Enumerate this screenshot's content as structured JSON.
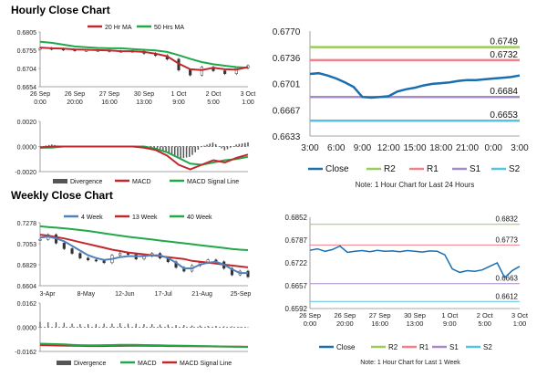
{
  "hourly_title": "Hourly Close Chart",
  "weekly_title": "Weekly Close Chart",
  "chart_data": [
    {
      "id": "hourly_price",
      "type": "line",
      "ylim": [
        0.6654,
        0.6805
      ],
      "y_ticks": [
        "0.6805",
        "0.6755",
        "0.6704",
        "0.6654"
      ],
      "x_ticks": [
        [
          "26 Sep",
          "0:00"
        ],
        [
          "26 Sep",
          "20:00"
        ],
        [
          "27 Sep",
          "16:00"
        ],
        [
          "30 Sep",
          "13:00"
        ],
        [
          "1 Oct",
          "9:00"
        ],
        [
          "2 Oct",
          "5:00"
        ],
        [
          "3 Oct",
          "1:00"
        ]
      ],
      "legend": [
        "20 Hr MA",
        "50 Hrs MA"
      ],
      "colors": {
        "ma20": "#c0282d",
        "ma50": "#22a84a",
        "candle": "#333333"
      },
      "x": [
        0,
        10,
        20,
        30,
        40,
        50,
        60,
        70,
        80,
        90,
        100,
        110,
        120,
        130,
        140,
        150,
        160,
        170,
        180
      ],
      "series": [
        {
          "name": "20 Hr MA",
          "values": [
            0.6762,
            0.676,
            0.6759,
            0.6757,
            0.6756,
            0.6755,
            0.6754,
            0.6752,
            0.6752,
            0.675,
            0.6745,
            0.6738,
            0.6718,
            0.6702,
            0.67,
            0.6706,
            0.6702,
            0.6701,
            0.6708
          ]
        },
        {
          "name": "50 Hrs MA",
          "values": [
            0.6778,
            0.6775,
            0.677,
            0.6765,
            0.6763,
            0.6761,
            0.676,
            0.676,
            0.6758,
            0.6756,
            0.6754,
            0.675,
            0.6741,
            0.6731,
            0.6722,
            0.6716,
            0.6712,
            0.6708,
            0.6706
          ]
        }
      ],
      "close": [
        0.676,
        0.6758,
        0.6756,
        0.6754,
        0.6754,
        0.6754,
        0.6752,
        0.6752,
        0.6752,
        0.6746,
        0.674,
        0.673,
        0.67,
        0.6686,
        0.6708,
        0.6698,
        0.669,
        0.6706,
        0.6712
      ]
    },
    {
      "id": "hourly_macd",
      "type": "line",
      "ylim": [
        -0.0022,
        0.0022
      ],
      "y_ticks": [
        "0.0020",
        "0.0000",
        "-0.0020"
      ],
      "legend": [
        "Divergence",
        "MACD",
        "MACD Signal Line"
      ],
      "colors": {
        "divergence": "#555555",
        "macd": "#c0282d",
        "signal": "#22a84a"
      },
      "x": [
        0,
        10,
        20,
        30,
        40,
        50,
        60,
        70,
        80,
        90,
        100,
        110,
        120,
        130,
        140,
        150,
        160,
        170,
        180
      ],
      "series": [
        {
          "name": "MACD",
          "values": [
            -0.0001,
            0.0,
            0.0,
            0.0,
            0.0,
            0.0,
            0.0,
            0.0,
            0.0,
            -0.0001,
            -0.0003,
            -0.0008,
            -0.0016,
            -0.002,
            -0.0016,
            -0.0012,
            -0.0014,
            -0.001,
            -0.0007
          ]
        },
        {
          "name": "MACD Signal Line",
          "values": [
            -0.0001,
            -0.0001,
            0.0,
            0.0,
            0.0,
            0.0,
            0.0,
            0.0,
            0.0,
            0.0,
            -0.0002,
            -0.0005,
            -0.001,
            -0.0015,
            -0.0016,
            -0.0014,
            -0.0012,
            -0.0011,
            -0.0009
          ]
        }
      ]
    },
    {
      "id": "hourly_24h",
      "type": "line",
      "ylim": [
        0.6633,
        0.677
      ],
      "y_ticks": [
        "0.6770",
        "0.6736",
        "0.6701",
        "0.6667",
        "0.6633"
      ],
      "x_ticks": [
        "3:00",
        "6:00",
        "9:00",
        "12:00",
        "15:00",
        "18:00",
        "21:00",
        "0:00",
        "3:00"
      ],
      "legend": [
        "Close",
        "R2",
        "R1",
        "S1",
        "S2"
      ],
      "colors": {
        "close": "#1a6fb0",
        "r2": "#9acc5a",
        "r1": "#f0808a",
        "s1": "#a58ac8",
        "s2": "#55c4e0"
      },
      "levels": {
        "R2": 0.6749,
        "R1": 0.6732,
        "S1": 0.6684,
        "S2": 0.6653
      },
      "level_labels": [
        "0.6749",
        "0.6732",
        "0.6684",
        "0.6653"
      ],
      "x": [
        0,
        1,
        2,
        3,
        4,
        5,
        6,
        7,
        8,
        9,
        10,
        11,
        12,
        13,
        14,
        15,
        16,
        17,
        18,
        19,
        20,
        21,
        22,
        23,
        24
      ],
      "close": [
        0.6714,
        0.6715,
        0.6712,
        0.6708,
        0.6703,
        0.6697,
        0.6684,
        0.6683,
        0.6684,
        0.6685,
        0.6691,
        0.6694,
        0.6696,
        0.6699,
        0.6701,
        0.6702,
        0.6703,
        0.6705,
        0.6706,
        0.6706,
        0.6707,
        0.6708,
        0.6709,
        0.671,
        0.6712
      ],
      "note": "Note: 1 Hour Chart for Last 24 Hours"
    },
    {
      "id": "weekly_price",
      "type": "line",
      "ylim": [
        0.6604,
        0.7278
      ],
      "y_ticks": [
        "0.7278",
        "0.7053",
        "0.6829",
        "0.6604"
      ],
      "x_ticks": [
        "3-Apr",
        "8-May",
        "12-Jun",
        "17-Jul",
        "21-Aug",
        "25-Sep"
      ],
      "legend": [
        "4 Week",
        "13 Week",
        "40 Week"
      ],
      "colors": {
        "w4": "#4f81bd",
        "w13": "#c0282d",
        "w40": "#22a84a",
        "candle": "#333333"
      },
      "x": [
        0,
        1,
        2,
        3,
        4,
        5,
        6,
        7,
        8,
        9,
        10,
        11,
        12,
        13,
        14,
        15,
        16,
        17,
        18,
        19,
        20,
        21,
        22,
        23,
        24,
        25,
        26
      ],
      "series": [
        {
          "name": "4 Week",
          "values": [
            0.712,
            0.713,
            0.711,
            0.708,
            0.703,
            0.698,
            0.693,
            0.69,
            0.688,
            0.689,
            0.691,
            0.692,
            0.692,
            0.692,
            0.693,
            0.693,
            0.69,
            0.685,
            0.679,
            0.679,
            0.683,
            0.685,
            0.686,
            0.683,
            0.678,
            0.674,
            0.674
          ]
        },
        {
          "name": "13 Week",
          "values": [
            0.715,
            0.714,
            0.7125,
            0.711,
            0.709,
            0.707,
            0.705,
            0.703,
            0.701,
            0.699,
            0.6975,
            0.696,
            0.695,
            0.694,
            0.693,
            0.692,
            0.691,
            0.69,
            0.689,
            0.687,
            0.686,
            0.685,
            0.684,
            0.683,
            0.682,
            0.681,
            0.68
          ]
        },
        {
          "name": "40 Week",
          "values": [
            0.724,
            0.7232,
            0.7225,
            0.7218,
            0.721,
            0.72,
            0.719,
            0.7178,
            0.7165,
            0.7152,
            0.714,
            0.7128,
            0.7118,
            0.7108,
            0.7098,
            0.7088,
            0.7078,
            0.7068,
            0.7058,
            0.7048,
            0.7038,
            0.7028,
            0.7018,
            0.7008,
            0.6998,
            0.699,
            0.6985
          ]
        }
      ],
      "close": [
        0.71,
        0.715,
        0.706,
        0.7,
        0.695,
        0.69,
        0.688,
        0.687,
        0.685,
        0.693,
        0.695,
        0.694,
        0.689,
        0.692,
        0.695,
        0.69,
        0.686,
        0.68,
        0.676,
        0.682,
        0.685,
        0.688,
        0.686,
        0.679,
        0.672,
        0.676,
        0.67
      ]
    },
    {
      "id": "weekly_macd",
      "type": "line",
      "ylim": [
        -0.0162,
        0.0162
      ],
      "y_ticks": [
        "0.0162",
        "0.0000",
        "-0.0162"
      ],
      "legend": [
        "Divergence",
        "MACD",
        "MACD Signal Line"
      ],
      "colors": {
        "divergence": "#555555",
        "macd": "#22a84a",
        "signal": "#c0282d"
      },
      "x": [
        0,
        1,
        2,
        3,
        4,
        5,
        6,
        7,
        8,
        9,
        10,
        11,
        12,
        13,
        14,
        15,
        16,
        17,
        18,
        19,
        20,
        21,
        22,
        23,
        24,
        25,
        26
      ],
      "series": [
        {
          "name": "MACD",
          "values": [
            -0.011,
            -0.0112,
            -0.0113,
            -0.0115,
            -0.0118,
            -0.012,
            -0.0121,
            -0.0121,
            -0.012,
            -0.0119,
            -0.0118,
            -0.0118,
            -0.0118,
            -0.0119,
            -0.012,
            -0.0121,
            -0.0122,
            -0.0123,
            -0.0124,
            -0.0125,
            -0.0126,
            -0.0127,
            -0.0128,
            -0.0129,
            -0.013,
            -0.0131,
            -0.0132
          ]
        },
        {
          "name": "MACD Signal Line",
          "values": [
            -0.012,
            -0.0121,
            -0.0122,
            -0.0123,
            -0.0124,
            -0.0125,
            -0.0126,
            -0.0126,
            -0.0126,
            -0.0125,
            -0.0125,
            -0.0124,
            -0.0124,
            -0.0124,
            -0.0125,
            -0.0125,
            -0.0126,
            -0.0126,
            -0.0127,
            -0.0127,
            -0.0128,
            -0.0128,
            -0.0129,
            -0.0129,
            -0.013,
            -0.013,
            -0.0131
          ]
        }
      ]
    },
    {
      "id": "weekly_hourly",
      "type": "line",
      "ylim": [
        0.6592,
        0.6852
      ],
      "y_ticks": [
        "0.6852",
        "0.6787",
        "0.6722",
        "0.6657",
        "0.6592"
      ],
      "x_ticks": [
        [
          "26 Sep",
          "0:00"
        ],
        [
          "26 Sep",
          "20:00"
        ],
        [
          "27 Sep",
          "16:00"
        ],
        [
          "30 Sep",
          "13:00"
        ],
        [
          "1 Oct",
          "9:00"
        ],
        [
          "2 Oct",
          "5:00"
        ],
        [
          "3 Oct",
          "1:00"
        ]
      ],
      "legend": [
        "Close",
        "R2",
        "R1",
        "S1",
        "S2"
      ],
      "colors": {
        "close": "#1a6fb0",
        "r2": "#9acc5a",
        "r1": "#f0808a",
        "s1": "#a58ac8",
        "s2": "#55c4e0"
      },
      "levels": {
        "R2": 0.6832,
        "R1": 0.6773,
        "S1": 0.6663,
        "S2": 0.6612
      },
      "level_labels": [
        "0.6832",
        "0.6773",
        "0.6663",
        "0.6612"
      ],
      "x": [
        0,
        5,
        10,
        15,
        20,
        25,
        30,
        35,
        40,
        45,
        50,
        55,
        60,
        65,
        70,
        75,
        80,
        85,
        90,
        95,
        100,
        105,
        110,
        115,
        120,
        125,
        130,
        135,
        140
      ],
      "close": [
        0.6758,
        0.6762,
        0.6755,
        0.676,
        0.677,
        0.6752,
        0.6755,
        0.6757,
        0.6754,
        0.6758,
        0.6755,
        0.6756,
        0.6754,
        0.6757,
        0.6755,
        0.6753,
        0.6756,
        0.6755,
        0.6745,
        0.6705,
        0.6695,
        0.67,
        0.6698,
        0.6702,
        0.6712,
        0.6722,
        0.668,
        0.67,
        0.6712
      ],
      "note": "Note: 1 Hour Chart for Last 1 Week"
    }
  ]
}
